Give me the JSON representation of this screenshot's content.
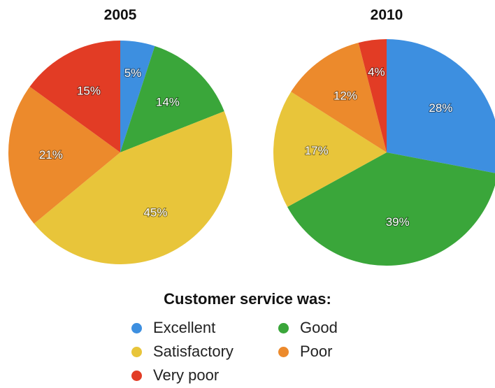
{
  "chart_data": [
    {
      "type": "pie",
      "title": "2005",
      "slices": [
        {
          "category": "Excellent",
          "value": 5,
          "label": "5%"
        },
        {
          "category": "Good",
          "value": 14,
          "label": "14%"
        },
        {
          "category": "Satisfactory",
          "value": 45,
          "label": "45%"
        },
        {
          "category": "Poor",
          "value": 21,
          "label": "21%"
        },
        {
          "category": "Very poor",
          "value": 15,
          "label": "15%"
        }
      ]
    },
    {
      "type": "pie",
      "title": "2010",
      "slices": [
        {
          "category": "Excellent",
          "value": 28,
          "label": "28%"
        },
        {
          "category": "Good",
          "value": 39,
          "label": "39%"
        },
        {
          "category": "Satisfactory",
          "value": 17,
          "label": "17%"
        },
        {
          "category": "Poor",
          "value": 12,
          "label": "12%"
        },
        {
          "category": "Very poor",
          "value": 4,
          "label": "4%"
        }
      ]
    }
  ],
  "legend": {
    "title": "Customer service was:",
    "placement": "bottom-center",
    "items": [
      {
        "label": "Excellent",
        "color": "#3d8fe0"
      },
      {
        "label": "Good",
        "color": "#3aa63a"
      },
      {
        "label": "Satisfactory",
        "color": "#e8c53a"
      },
      {
        "label": "Poor",
        "color": "#ec8a2c"
      },
      {
        "label": "Very poor",
        "color": "#e23c25"
      }
    ]
  }
}
